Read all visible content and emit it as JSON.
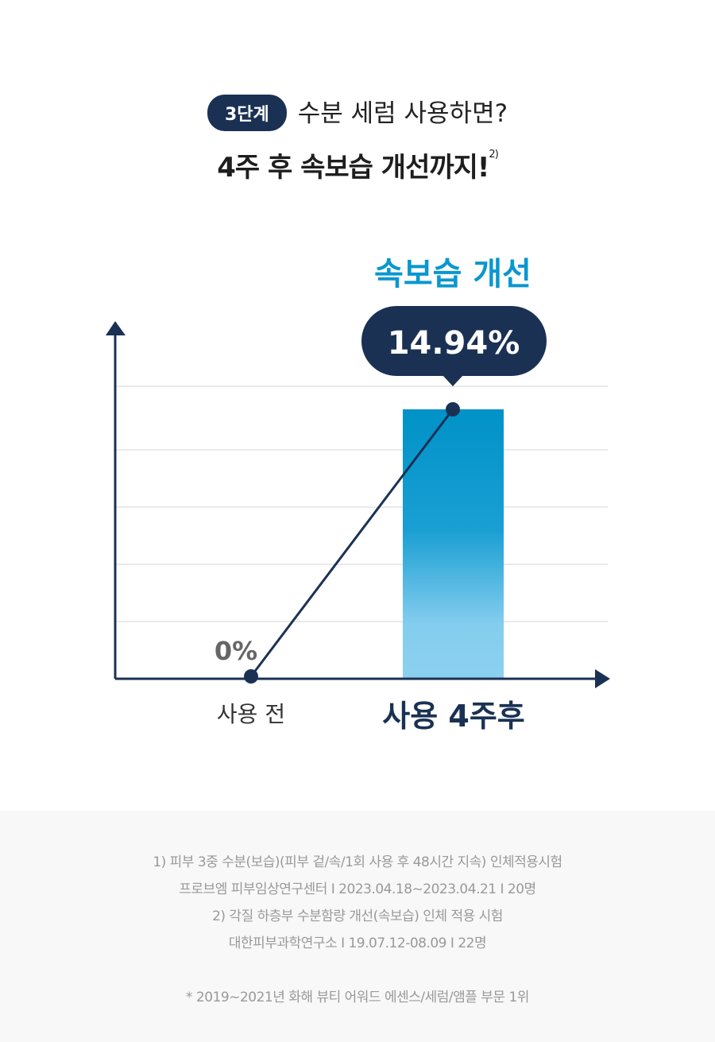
{
  "header": {
    "badge": "3단계",
    "subtitle": "수분 세럼 사용하면?",
    "title": "4주 후 속보습 개선까지!",
    "title_note": "2)"
  },
  "chart_data": {
    "type": "bar",
    "title": "속보습 개선",
    "categories": [
      "사용 전",
      "사용 4주후"
    ],
    "values": [
      0,
      14.94
    ],
    "value_labels": [
      "0%",
      "14.94%"
    ],
    "unit": "%",
    "grid": true,
    "colors": {
      "axis": "#1a3154",
      "bar_top": "#0092c8",
      "bar_bottom": "#8dd0ef",
      "title": "#0a97cf",
      "bubble": "#1a3154"
    }
  },
  "footnotes": [
    "1) 피부 3중 수분(보습)(피부 겉/속/1회 사용 후 48시간 지속) 인체적용시험",
    "프로브엠 피부임상연구센터 I 2023.04.18~2023.04.21 I 20명",
    "2) 각질 하층부 수분함량 개선(속보습) 인체 적용 시험",
    "대한피부과학연구소 I 19.07.12-08.09 I 22명",
    "* 2019~2021년 화해 뷰티 어워드 에센스/세럼/앰플 부문 1위"
  ]
}
